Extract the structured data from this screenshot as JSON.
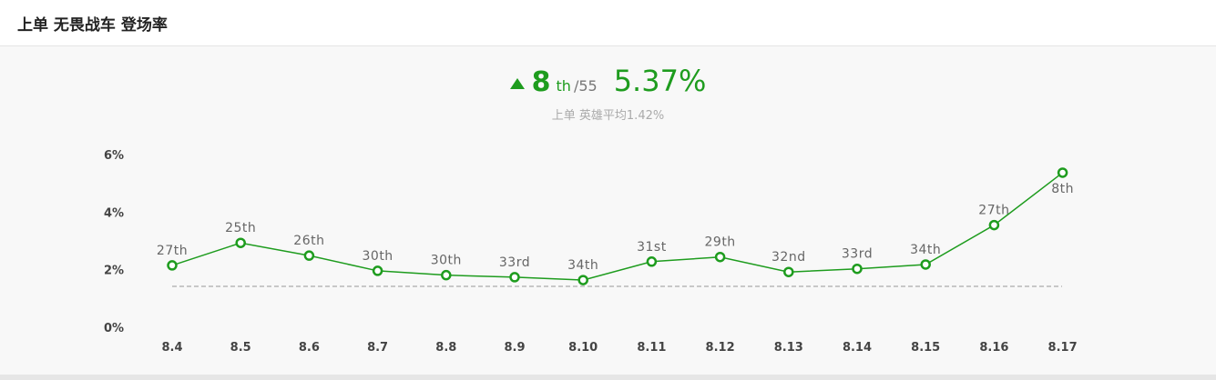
{
  "header": {
    "title": "上单 无畏战车 登场率"
  },
  "summary": {
    "rank": "8",
    "rank_suffix": "th",
    "rank_total": "/55",
    "rate": "5.37%",
    "average_text": "上单 英雄平均1.42%"
  },
  "colors": {
    "accent": "#1e9c1e",
    "average_line": "#999999"
  },
  "chart_data": {
    "type": "line",
    "title": "",
    "xlabel": "",
    "ylabel": "",
    "categories": [
      "8.4",
      "8.5",
      "8.6",
      "8.7",
      "8.8",
      "8.9",
      "8.10",
      "8.11",
      "8.12",
      "8.13",
      "8.14",
      "8.15",
      "8.16",
      "8.17"
    ],
    "series": [
      {
        "values": [
          2.15,
          2.93,
          2.49,
          1.96,
          1.81,
          1.74,
          1.64,
          2.28,
          2.44,
          1.92,
          2.03,
          2.18,
          3.55,
          5.37
        ]
      }
    ],
    "data_labels": [
      "27th",
      "25th",
      "26th",
      "30th",
      "30th",
      "33rd",
      "34th",
      "31st",
      "29th",
      "32nd",
      "33rd",
      "34th",
      "27th",
      "8th"
    ],
    "reference_line": {
      "value": 1.42,
      "style": "dashed"
    },
    "yticks": [
      "0%",
      "2%",
      "4%",
      "6%"
    ],
    "ylim": [
      0,
      6
    ],
    "grid": false,
    "legend": "none"
  }
}
